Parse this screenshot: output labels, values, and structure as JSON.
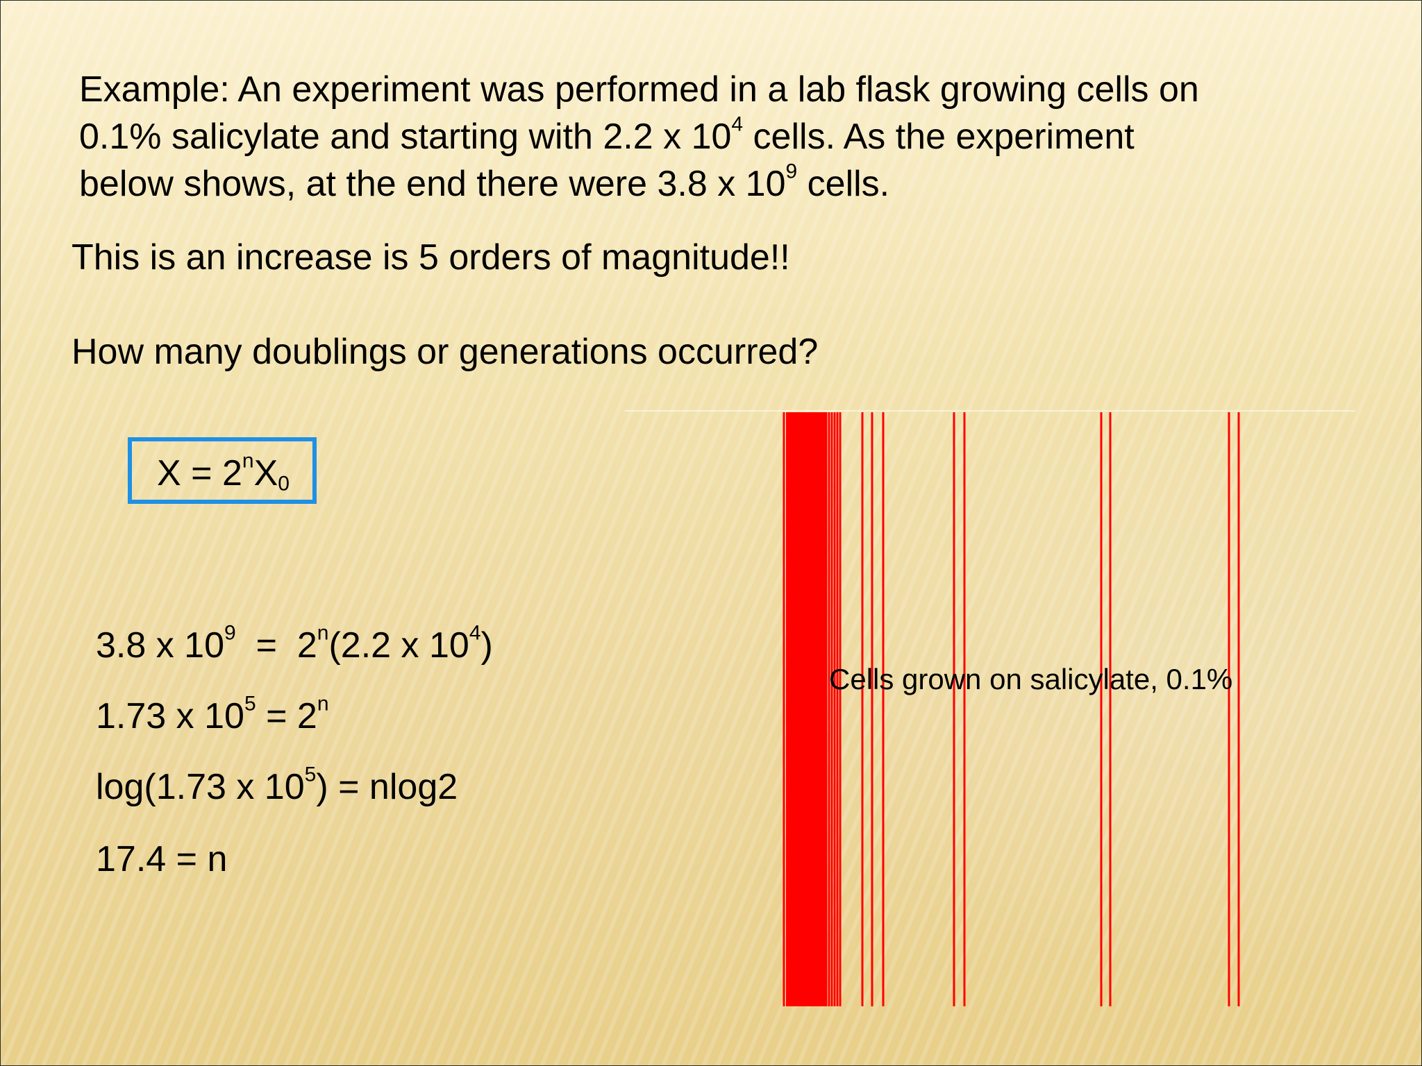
{
  "slide": {
    "intro": {
      "line1": "Example:  An experiment was performed in a lab flask growing cells on",
      "line2_pre": "0.1% salicylate and starting with 2.2 x 10",
      "line2_exp": "4",
      "line2_post": " cells.  As the experiment",
      "line3_pre": "below shows, at the end there were 3.8 x 10",
      "line3_exp": "9",
      "line3_post": " cells."
    },
    "increase_text": "This is an increase is 5 orders of magnitude!!",
    "question_text": "How many doublings or generations occurred?",
    "formula": {
      "lhs": "X = 2",
      "exp": "n",
      "var": "X",
      "sub": "0"
    },
    "equations": {
      "eq1": {
        "a": "3.8 x 10",
        "a_exp": "9",
        "b": "  =  2",
        "b_exp": "n",
        "c": "(2.2 x 10",
        "c_exp": "4",
        "d": ")"
      },
      "eq2": {
        "a": "1.73 x 10",
        "a_exp": "5",
        "b": " = 2",
        "b_exp": "n"
      },
      "eq3": {
        "a": "log(1.73 x 10",
        "a_exp": "5",
        "b": ") = nlog2"
      },
      "eq4": "17.4 = n"
    },
    "figure_caption": "Cells grown on salicylate, 0.1%",
    "colors": {
      "accent_box": "#1e90e6",
      "line_red": "#ff0000"
    }
  }
}
